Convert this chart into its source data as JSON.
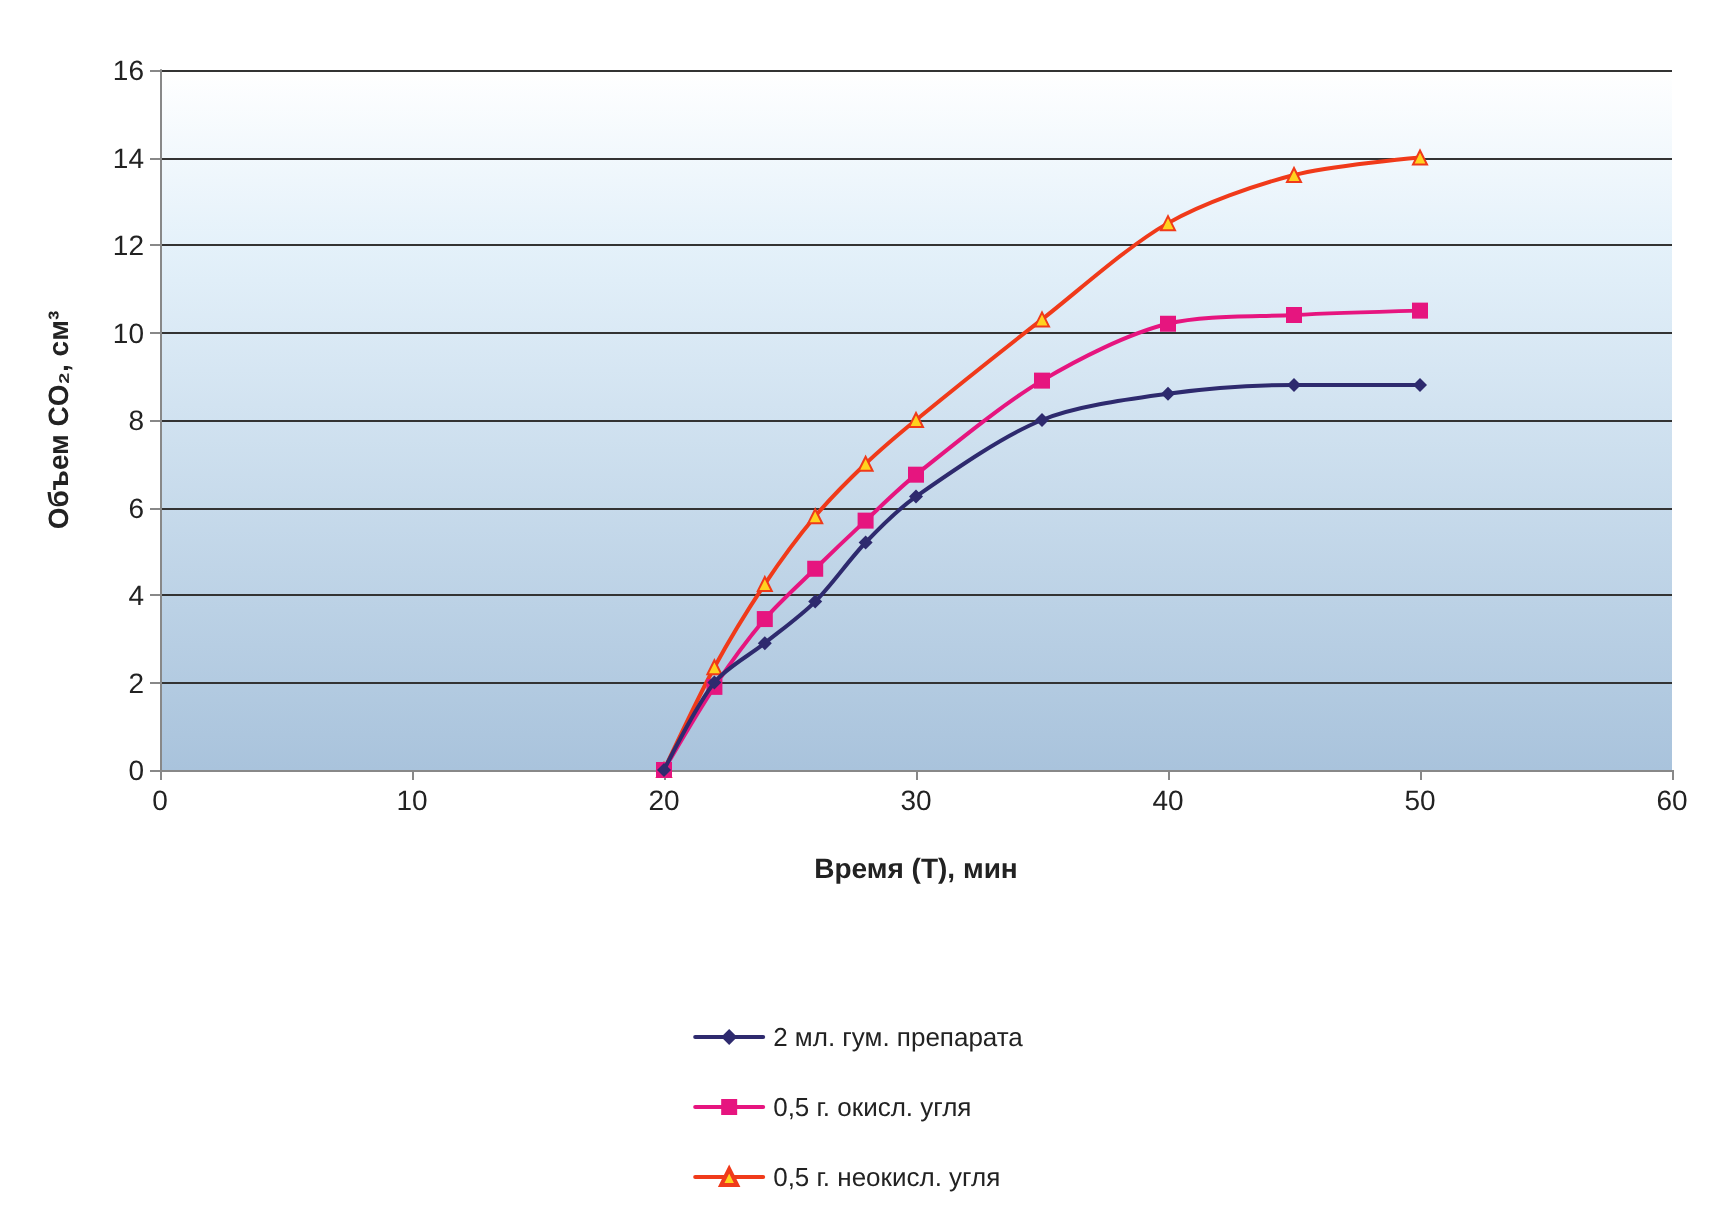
{
  "chart_data": {
    "type": "line",
    "xlabel": "Время (T), мин",
    "ylabel": "Объем CO₂, см³",
    "x": [
      20,
      22,
      24,
      26,
      28,
      30,
      35,
      40,
      45,
      50
    ],
    "series": [
      {
        "name": "2 мл. гум. препарата",
        "color": "#2e2a6e",
        "marker": "diamond",
        "values": [
          0,
          2.0,
          2.9,
          3.85,
          5.2,
          6.25,
          8.0,
          8.6,
          8.8,
          8.8
        ]
      },
      {
        "name": "0,5 г. окисл. угля",
        "color": "#e6157f",
        "marker": "square",
        "values": [
          0,
          1.9,
          3.45,
          4.6,
          5.7,
          6.75,
          8.9,
          10.2,
          10.4,
          10.5
        ]
      },
      {
        "name": "0,5 г. неокисл. угля",
        "color": "#f03a1a",
        "marker": "triangle",
        "values": [
          0,
          2.35,
          4.25,
          5.8,
          7.0,
          8.0,
          10.3,
          12.5,
          13.6,
          14.0
        ]
      }
    ],
    "xlim": [
      0,
      60
    ],
    "xticks": [
      0,
      10,
      20,
      30,
      40,
      50,
      60
    ],
    "ylim": [
      0,
      16
    ],
    "yticks": [
      0,
      2,
      4,
      6,
      8,
      10,
      12,
      14,
      16
    ],
    "grid": "y",
    "legend": "bottom",
    "line_style": "solid"
  }
}
